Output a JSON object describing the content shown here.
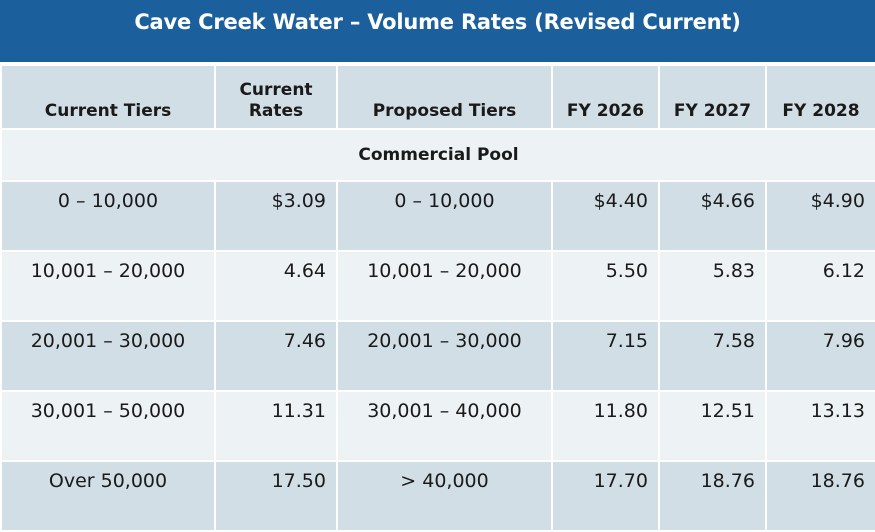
{
  "title": "Cave Creek Water – Volume Rates (Revised Current)",
  "headers": [
    "Current Tiers",
    "Current Rates",
    "Proposed Tiers",
    "FY 2026",
    "FY 2027",
    "FY 2028"
  ],
  "section": "Commercial Pool",
  "rows": [
    [
      "0 – 10,000",
      "$3.09",
      "0 – 10,000",
      "$4.40",
      "$4.66",
      "$4.90"
    ],
    [
      "10,001 – 20,000",
      "4.64",
      "10,001 – 20,000",
      "5.50",
      "5.83",
      "6.12"
    ],
    [
      "20,001 – 30,000",
      "7.46",
      "20,001 – 30,000",
      "7.15",
      "7.58",
      "7.96"
    ],
    [
      "30,001 – 50,000",
      "11.31",
      "30,001 – 40,000",
      "11.80",
      "12.51",
      "13.13"
    ],
    [
      "Over 50,000",
      "17.50",
      "> 40,000",
      "17.70",
      "18.76",
      "18.76"
    ]
  ]
}
